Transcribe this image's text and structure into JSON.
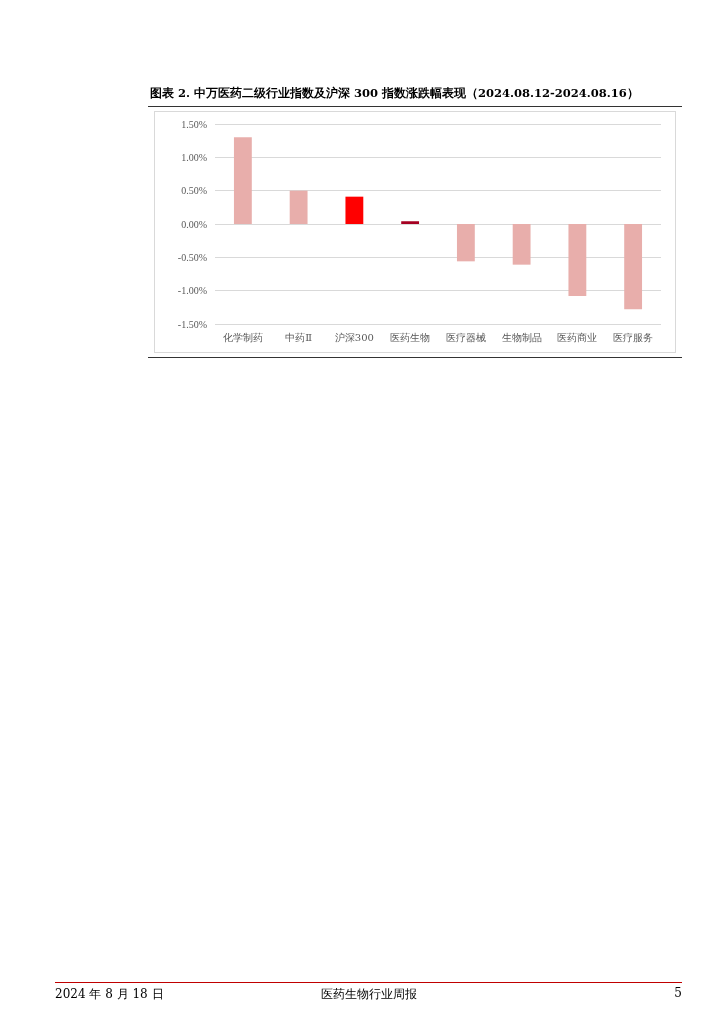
{
  "chart_data": {
    "type": "bar",
    "title": "图表 2. 中万医药二级行业指数及沪深 300 指数涨跌幅表现（2024.08.12-2024.08.16）",
    "categories": [
      "化学制药",
      "中药Ⅱ",
      "沪深300",
      "医药生物",
      "医疗器械",
      "生物制品",
      "医药商业",
      "医疗服务"
    ],
    "values": [
      1.3,
      0.5,
      0.41,
      0.04,
      -0.56,
      -0.61,
      -1.08,
      -1.28
    ],
    "colors": [
      "#e8aeab",
      "#e8aeab",
      "#ff0000",
      "#a50021",
      "#e8aeab",
      "#e8aeab",
      "#e8aeab",
      "#e8aeab"
    ],
    "ylim": [
      -1.5,
      1.5
    ],
    "yticks": [
      {
        "value": -1.5,
        "label": "-1.50%"
      },
      {
        "value": -1,
        "label": "-1.00%"
      },
      {
        "value": -0.5,
        "label": "-0.50%"
      },
      {
        "value": 0,
        "label": "0.00%"
      },
      {
        "value": 0.5,
        "label": "0.50%"
      },
      {
        "value": 1,
        "label": "1.00%"
      },
      {
        "value": 1.5,
        "label": "1.50%"
      }
    ],
    "grid": "y",
    "annotations": [
      "2024 年 8 月 18 日",
      "医药生物行业周报",
      "5"
    ]
  }
}
